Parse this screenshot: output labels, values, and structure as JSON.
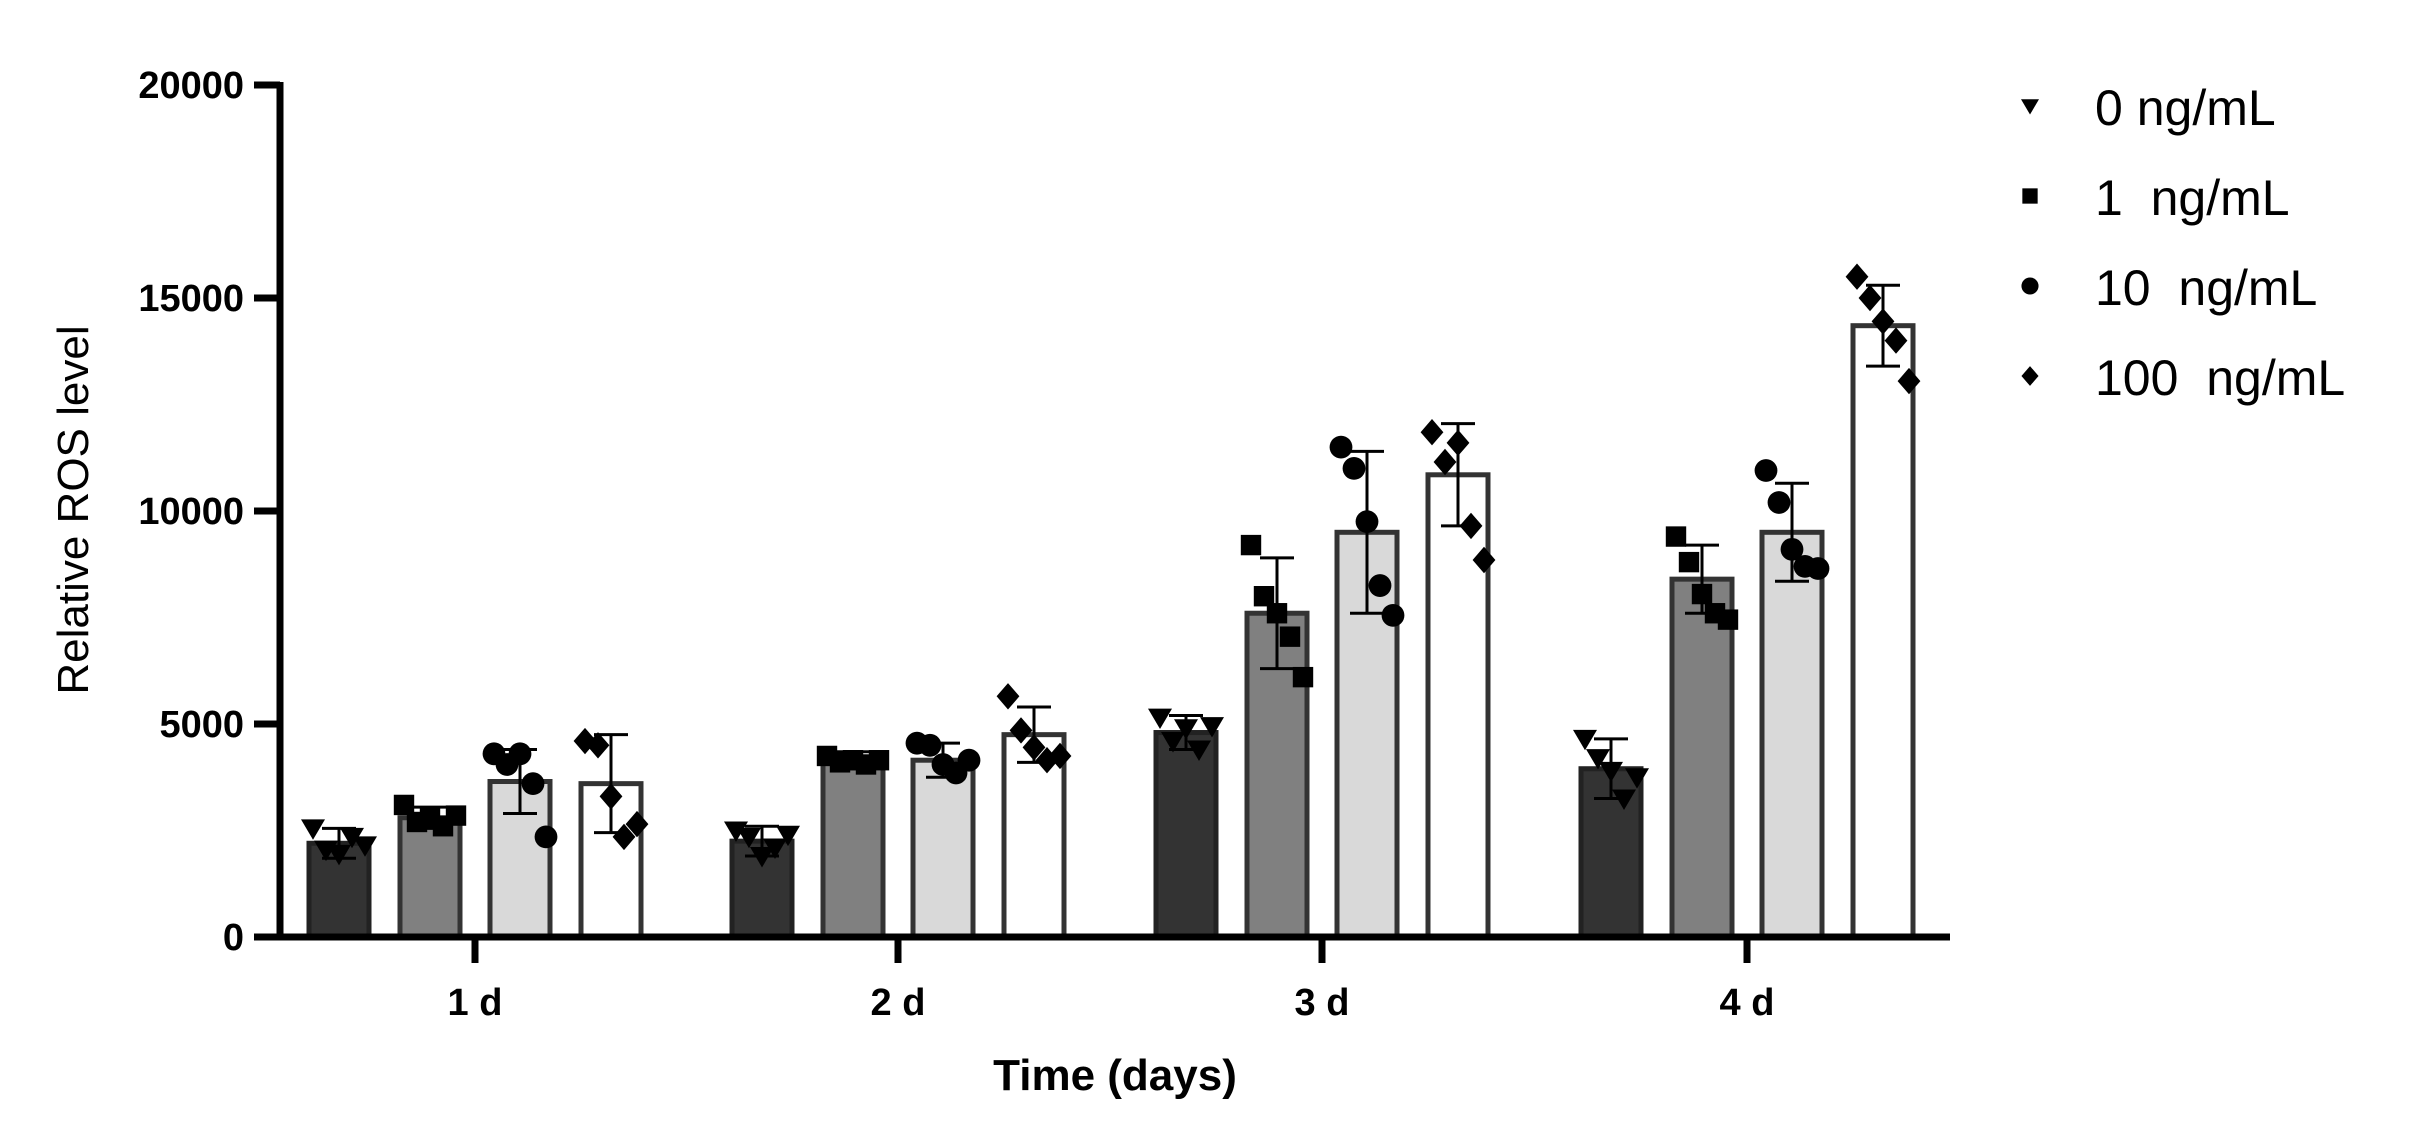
{
  "chart_data": {
    "type": "bar",
    "title": "",
    "xlabel": "Time (days)",
    "ylabel": "Relative ROS level",
    "ylim": [
      0,
      20000
    ],
    "yticks": [
      0,
      5000,
      10000,
      15000,
      20000
    ],
    "yticklabels": [
      "0",
      "5000",
      "10000",
      "15000",
      "20000"
    ],
    "categories": [
      "1 d",
      "2 d",
      "3 d",
      "4 d"
    ],
    "grid": false,
    "legend_position": "top-right",
    "series": [
      {
        "name": "0 ng/mL",
        "marker": "triangle-down",
        "fill": "#333333",
        "values": [
          2200,
          2250,
          4800,
          3950
        ],
        "errors": [
          350,
          350,
          400,
          700
        ],
        "points": [
          [
            2550,
            2050,
            1950,
            2350,
            2150
          ],
          [
            2500,
            2350,
            1900,
            2100,
            2400
          ],
          [
            5150,
            4600,
            4900,
            4400,
            4950
          ],
          [
            4650,
            4200,
            3900,
            3250,
            3750
          ]
        ]
      },
      {
        "name": "1  ng/mL",
        "marker": "square",
        "fill": "#808080",
        "values": [
          2800,
          4150,
          7600,
          8400
        ],
        "errors": [
          250,
          200,
          1300,
          800
        ],
        "points": [
          [
            3100,
            2700,
            2800,
            2600,
            2850
          ],
          [
            4250,
            4100,
            4150,
            4050,
            4150
          ],
          [
            9200,
            8000,
            7600,
            7050,
            6100
          ],
          [
            9400,
            8800,
            8050,
            7600,
            7450
          ]
        ]
      },
      {
        "name": "10  ng/mL",
        "marker": "circle",
        "fill": "#d9d9d9",
        "values": [
          3650,
          4150,
          9500,
          9500
        ],
        "errors": [
          750,
          400,
          1900,
          1150
        ],
        "points": [
          [
            4300,
            4050,
            4300,
            3600,
            2350
          ],
          [
            4550,
            4500,
            4050,
            3850,
            4150
          ],
          [
            11500,
            11000,
            9750,
            8250,
            7550
          ],
          [
            10950,
            10200,
            9100,
            8700,
            8650
          ]
        ]
      },
      {
        "name": "100  ng/mL",
        "marker": "diamond",
        "fill": "#ffffff",
        "values": [
          3600,
          4750,
          10850,
          14350
        ],
        "errors": [
          1150,
          650,
          1200,
          950
        ],
        "points": [
          [
            4600,
            4500,
            3300,
            2350,
            2650
          ],
          [
            5650,
            4850,
            4450,
            4150,
            4250
          ],
          [
            11850,
            11150,
            11600,
            9650,
            8850
          ],
          [
            15500,
            15000,
            14450,
            14000,
            13050
          ]
        ]
      }
    ]
  }
}
